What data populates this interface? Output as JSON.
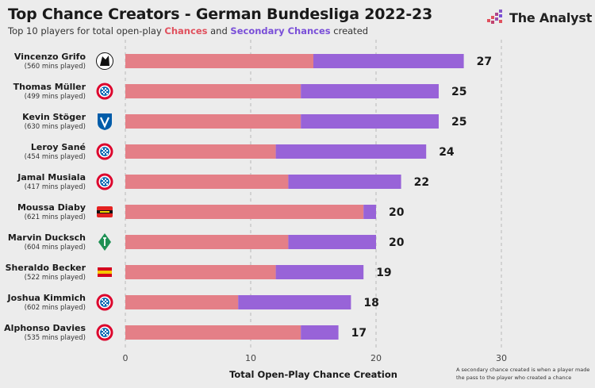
{
  "header": {
    "title": "Top Chance Creators - German Bundesliga 2022-23",
    "subtitle_prefix": "Top 10 players for total open-play",
    "subtitle_chances": "Chances",
    "subtitle_and": "and",
    "subtitle_secondary": "Secondary Chances",
    "subtitle_suffix": "created"
  },
  "brand": {
    "name": "The Analyst",
    "icon": "analyst-logo-icon"
  },
  "footnote": "A secondary chance created is when a player made the pass to the player who created a chance",
  "colors": {
    "chances": "#e47f87",
    "secondary": "#9863d8",
    "background": "#ececec"
  },
  "chart_data": {
    "type": "bar",
    "orientation": "horizontal",
    "stacked": true,
    "xlabel": "Total Open-Play Chance Creation",
    "xlim": [
      0,
      30
    ],
    "xticks": [
      0,
      10,
      20,
      30
    ],
    "grid": true,
    "legend": "in subtitle",
    "categories": [
      "Vincenzo Grifo",
      "Thomas Müller",
      "Kevin Stöger",
      "Leroy Sané",
      "Jamal Musiala",
      "Moussa Diaby",
      "Marvin Ducksch",
      "Sheraldo Becker",
      "Joshua Kimmich",
      "Alphonso Davies"
    ],
    "minutes_played": [
      "(560 mins played)",
      "(499 mins played)",
      "(630 mins played)",
      "(454 mins played)",
      "(417 mins played)",
      "(621 mins played)",
      "(604 mins played)",
      "(522 mins played)",
      "(602 mins played)",
      "(535 mins played)"
    ],
    "clubs": [
      "freiburg-crest-icon",
      "bayern-crest-icon",
      "bochum-crest-icon",
      "bayern-crest-icon",
      "bayern-crest-icon",
      "leverkusen-crest-icon",
      "bremen-crest-icon",
      "union-berlin-crest-icon",
      "bayern-crest-icon",
      "bayern-crest-icon"
    ],
    "series": [
      {
        "name": "Chances",
        "values": [
          15,
          14,
          14,
          12,
          13,
          19,
          13,
          12,
          9,
          14
        ]
      },
      {
        "name": "Secondary Chances",
        "values": [
          12,
          11,
          11,
          12,
          9,
          1,
          7,
          7,
          9,
          3
        ]
      }
    ],
    "totals": [
      "27",
      "25",
      "25",
      "24",
      "22",
      "20",
      "20",
      "19",
      "18",
      "17"
    ]
  }
}
